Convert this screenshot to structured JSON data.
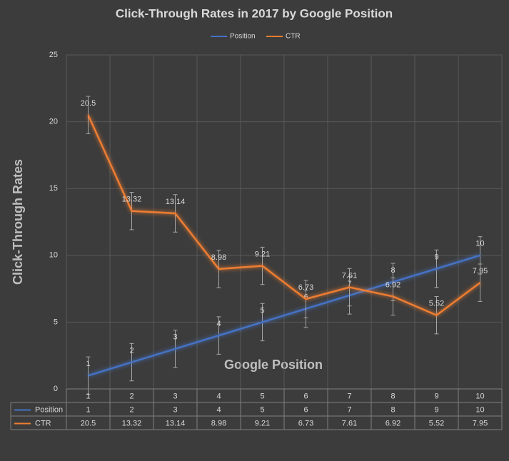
{
  "chart_data": {
    "type": "line",
    "title": "Click-Through Rates in 2017 by Google Position",
    "x_label": "Google Position",
    "y_label": "Click-Through Rates",
    "categories": [
      "1",
      "2",
      "3",
      "4",
      "5",
      "6",
      "7",
      "8",
      "9",
      "10"
    ],
    "series": [
      {
        "name": "Position",
        "color": "#4472c4",
        "values": [
          1,
          2,
          3,
          4,
          5,
          6,
          7,
          8,
          9,
          10
        ],
        "errors": [
          1.4,
          1.4,
          1.4,
          1.4,
          1.4,
          1.4,
          1.4,
          1.4,
          1.4,
          1.4
        ]
      },
      {
        "name": "CTR",
        "color": "#ed7d31",
        "values": [
          20.5,
          13.32,
          13.14,
          8.98,
          9.21,
          6.73,
          7.61,
          6.92,
          5.52,
          7.95
        ],
        "errors": [
          1.4,
          1.4,
          1.4,
          1.4,
          1.4,
          1.4,
          1.4,
          1.4,
          1.4,
          1.4
        ]
      }
    ],
    "ylim": [
      0,
      25
    ],
    "yticks": [
      0,
      5,
      10,
      15,
      20,
      25
    ],
    "grid": true,
    "legend": "top",
    "data_table": true
  }
}
